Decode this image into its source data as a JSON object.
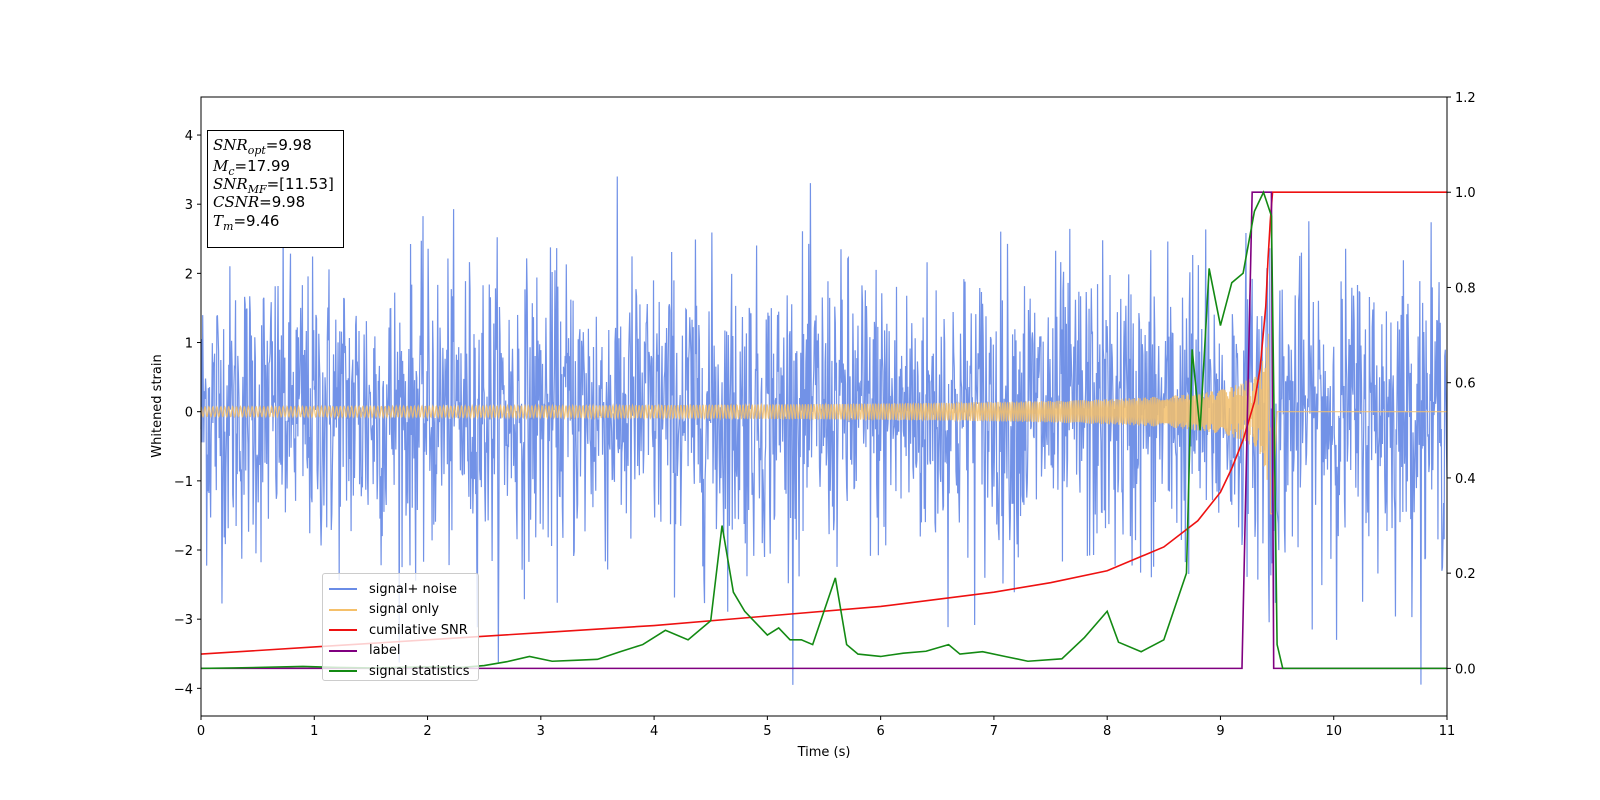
{
  "chart_data": {
    "type": "line",
    "xlabel": "Time (s)",
    "ylabel": "Whitened strain",
    "xlim": [
      0,
      11
    ],
    "ylim_left": [
      -4.4,
      4.55
    ],
    "ylim_right": [
      -0.1,
      1.2
    ],
    "xticks": [
      "0",
      "1",
      "2",
      "3",
      "4",
      "5",
      "6",
      "7",
      "8",
      "9",
      "10",
      "11"
    ],
    "yticks_left": [
      "−4",
      "−3",
      "−2",
      "−1",
      "0",
      "1",
      "2",
      "3",
      "4"
    ],
    "yticks_right": [
      "0.0",
      "0.2",
      "0.4",
      "0.6",
      "0.8",
      "1.0",
      "1.2"
    ],
    "grid": false,
    "legend_placement": "lower-left",
    "annotation": {
      "snr_opt": "=9.98",
      "mc": "=17.99",
      "snr_mf": "=[11.53]",
      "csnr": "=9.98",
      "tm": "=9.46"
    },
    "series": [
      {
        "name": "signal+ noise",
        "color": "#6a8ce6",
        "axis": "left",
        "description_values": {
          "amplitude_range": [
            -4.0,
            4.2
          ],
          "baseline": 0
        }
      },
      {
        "name": "signal only",
        "color": "#f5c06a",
        "axis": "left",
        "chirp": {
          "start_time": 0,
          "merger_time": 9.46,
          "peak_amplitude": 2.0,
          "end_time": 9.5
        }
      },
      {
        "name": "cumilative SNR",
        "color": "#ee1111",
        "axis": "right",
        "points": [
          [
            0,
            0.03
          ],
          [
            1,
            0.045
          ],
          [
            2,
            0.06
          ],
          [
            3,
            0.075
          ],
          [
            4,
            0.09
          ],
          [
            5,
            0.11
          ],
          [
            6,
            0.13
          ],
          [
            7,
            0.16
          ],
          [
            7.5,
            0.18
          ],
          [
            8,
            0.205
          ],
          [
            8.5,
            0.255
          ],
          [
            8.8,
            0.31
          ],
          [
            9.0,
            0.37
          ],
          [
            9.1,
            0.42
          ],
          [
            9.2,
            0.48
          ],
          [
            9.3,
            0.56
          ],
          [
            9.35,
            0.63
          ],
          [
            9.4,
            0.76
          ],
          [
            9.42,
            0.86
          ],
          [
            9.44,
            0.94
          ],
          [
            9.46,
            1.0
          ],
          [
            11,
            1.0
          ]
        ]
      },
      {
        "name": "label",
        "color": "#800080",
        "axis": "right",
        "points": [
          [
            0,
            0
          ],
          [
            9.19,
            0
          ],
          [
            9.28,
            1.0
          ],
          [
            9.45,
            1.0
          ],
          [
            9.47,
            0
          ],
          [
            11,
            0
          ]
        ]
      },
      {
        "name": "signal statistics",
        "color": "#138a13",
        "axis": "right",
        "points": [
          [
            0,
            0.0
          ],
          [
            0.3,
            0.001
          ],
          [
            0.9,
            0.004
          ],
          [
            1.2,
            0.002
          ],
          [
            1.5,
            0.001
          ],
          [
            2.0,
            0.003
          ],
          [
            2.3,
            0.002
          ],
          [
            2.5,
            0.006
          ],
          [
            2.7,
            0.014
          ],
          [
            2.9,
            0.025
          ],
          [
            3.1,
            0.015
          ],
          [
            3.3,
            0.017
          ],
          [
            3.5,
            0.019
          ],
          [
            3.7,
            0.035
          ],
          [
            3.9,
            0.05
          ],
          [
            4.1,
            0.08
          ],
          [
            4.3,
            0.06
          ],
          [
            4.5,
            0.1
          ],
          [
            4.6,
            0.3
          ],
          [
            4.7,
            0.16
          ],
          [
            4.8,
            0.12
          ],
          [
            5.0,
            0.07
          ],
          [
            5.1,
            0.085
          ],
          [
            5.2,
            0.06
          ],
          [
            5.3,
            0.06
          ],
          [
            5.4,
            0.05
          ],
          [
            5.6,
            0.19
          ],
          [
            5.7,
            0.05
          ],
          [
            5.8,
            0.03
          ],
          [
            6.0,
            0.025
          ],
          [
            6.2,
            0.032
          ],
          [
            6.4,
            0.036
          ],
          [
            6.6,
            0.05
          ],
          [
            6.7,
            0.03
          ],
          [
            6.9,
            0.035
          ],
          [
            7.1,
            0.025
          ],
          [
            7.3,
            0.015
          ],
          [
            7.6,
            0.02
          ],
          [
            7.8,
            0.065
          ],
          [
            8.0,
            0.12
          ],
          [
            8.1,
            0.055
          ],
          [
            8.3,
            0.035
          ],
          [
            8.5,
            0.06
          ],
          [
            8.7,
            0.2
          ],
          [
            8.75,
            0.67
          ],
          [
            8.82,
            0.5
          ],
          [
            8.9,
            0.84
          ],
          [
            9.0,
            0.72
          ],
          [
            9.1,
            0.81
          ],
          [
            9.2,
            0.83
          ],
          [
            9.3,
            0.96
          ],
          [
            9.38,
            1.0
          ],
          [
            9.45,
            0.95
          ],
          [
            9.5,
            0.05
          ],
          [
            9.55,
            0.0
          ],
          [
            11,
            0.0
          ]
        ]
      }
    ]
  }
}
